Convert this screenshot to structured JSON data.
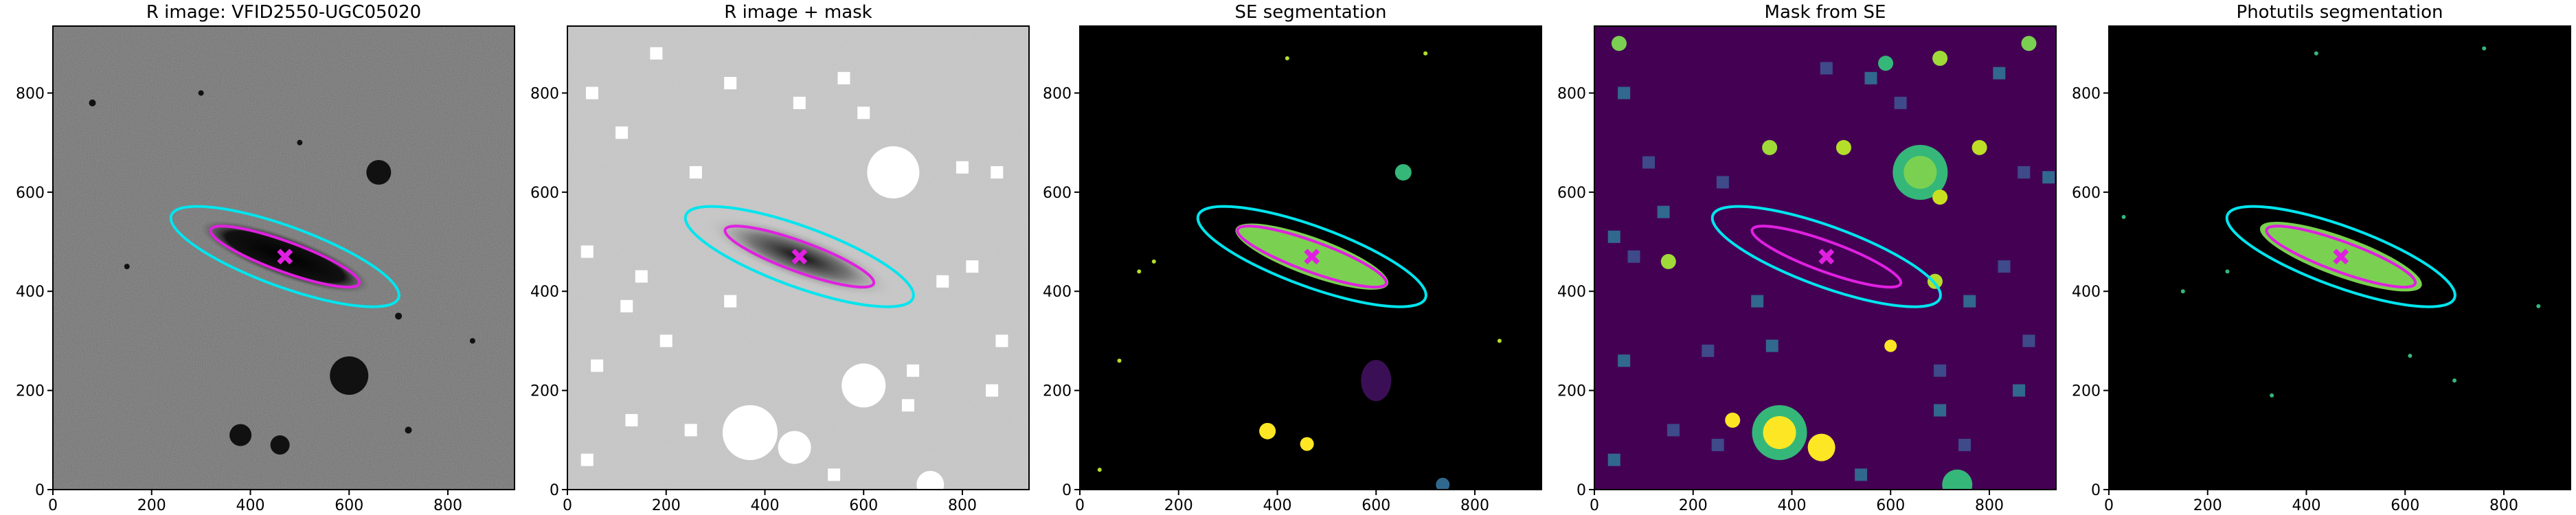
{
  "chart_data": [
    {
      "type": "image",
      "title": "R image: VFID2550-UGC05020",
      "xlim": [
        0,
        935
      ],
      "ylim": [
        0,
        935
      ],
      "xticks": [
        0,
        200,
        400,
        600,
        800
      ],
      "yticks": [
        0,
        200,
        400,
        600,
        800
      ]
    },
    {
      "type": "image",
      "title": "R image + mask",
      "xlim": [
        0,
        935
      ],
      "ylim": [
        0,
        935
      ],
      "xticks": [
        0,
        200,
        400,
        600,
        800
      ],
      "yticks": [
        0,
        200,
        400,
        600,
        800
      ]
    },
    {
      "type": "image",
      "title": "SE segmentation",
      "xlim": [
        0,
        935
      ],
      "ylim": [
        0,
        935
      ],
      "xticks": [
        0,
        200,
        400,
        600,
        800
      ],
      "yticks": [
        0,
        200,
        400,
        600,
        800
      ]
    },
    {
      "type": "image",
      "title": "Mask from SE",
      "xlim": [
        0,
        935
      ],
      "ylim": [
        0,
        935
      ],
      "xticks": [
        0,
        200,
        400,
        600,
        800
      ],
      "yticks": [
        0,
        200,
        400,
        600,
        800
      ]
    },
    {
      "type": "image",
      "title": "Photutils segmentation",
      "xlim": [
        0,
        935
      ],
      "ylim": [
        0,
        935
      ],
      "xticks": [
        0,
        200,
        400,
        600,
        800
      ],
      "yticks": [
        0,
        200,
        400,
        600,
        800
      ]
    }
  ]
}
